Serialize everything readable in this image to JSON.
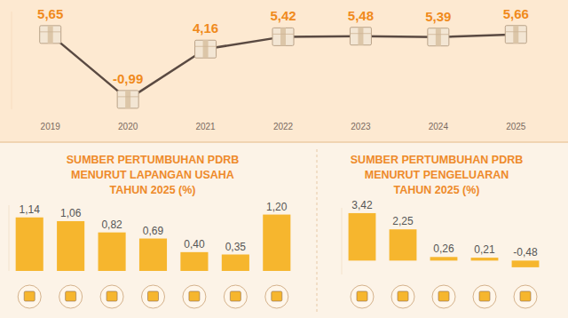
{
  "chart_data": [
    {
      "type": "line",
      "categories": [
        "2019",
        "2020",
        "2021",
        "2022",
        "2023",
        "2024",
        "2025"
      ],
      "values": [
        5.65,
        -0.99,
        4.16,
        5.42,
        5.48,
        5.39,
        5.66
      ],
      "value_labels": [
        "5,65",
        "-0,99",
        "4,16",
        "5,42",
        "5,48",
        "5,39",
        "5,66"
      ],
      "color": "#5a4a42",
      "marker": "square",
      "data_labels": true,
      "tick_labels": "x",
      "ylim": [
        -2,
        8
      ],
      "yticks": []
    },
    {
      "type": "bar",
      "title": "SUMBER PERTUMBUHAN PDRB\nMENURUT LAPANGAN USAHA\nTAHUN 2025 (%)",
      "categories": [
        null,
        null,
        null,
        null,
        null,
        null,
        null
      ],
      "values": [
        1.14,
        1.06,
        0.82,
        0.69,
        0.4,
        0.35,
        1.2
      ],
      "value_labels": [
        "1,14",
        "1,06",
        "0,82",
        "0,69",
        "0,40",
        "0,35",
        "1,20"
      ],
      "color": "#f6b62e",
      "data_labels": true,
      "tick_labels": false,
      "ylim": [
        0,
        1.4
      ],
      "yticks": []
    },
    {
      "type": "bar",
      "title": "SUMBER PERTUMBUHAN PDRB\nMENURUT PENGELUARAN\nTAHUN 2025 (%)",
      "categories": [
        null,
        null,
        null,
        null,
        null
      ],
      "values": [
        3.42,
        2.25,
        0.26,
        0.21,
        -0.48
      ],
      "value_labels": [
        "3,42",
        "2,25",
        "0,26",
        "0,21",
        "-0,48"
      ],
      "color": "#f6b62e",
      "data_labels": true,
      "tick_labels": false,
      "ylim": [
        -1,
        3.8
      ],
      "yticks": []
    }
  ]
}
